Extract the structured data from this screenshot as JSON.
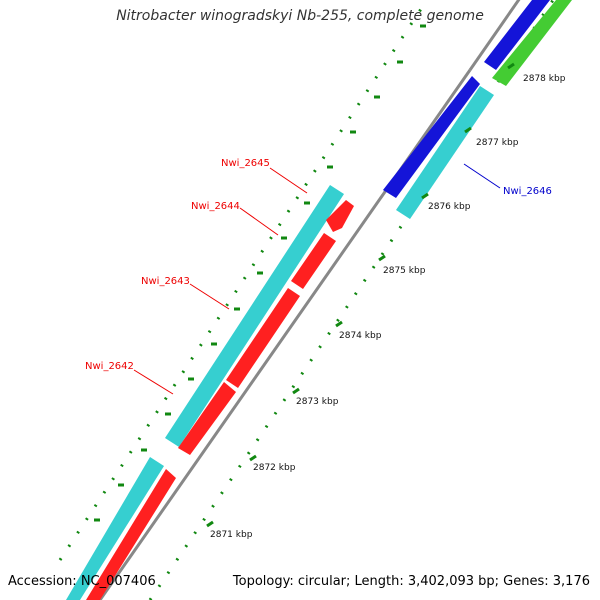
{
  "title": "Nitrobacter winogradskyi Nb-255, complete genome",
  "footer": {
    "accession": "Accession: NC_007406",
    "info": "Topology: circular; Length: 3,402,093 bp; Genes: 3,176"
  },
  "colors": {
    "cyan": "#36cfd0",
    "red": "#ff1a1a",
    "blue": "#1414d8",
    "green": "#44cc33",
    "backbone": "#888888",
    "tick": "#118811",
    "red_label": "#ee0000",
    "blue_label": "#0000cc"
  },
  "scale_labels": [
    "2871 kbp",
    "2872 kbp",
    "2873 kbp",
    "2874 kbp",
    "2875 kbp",
    "2876 kbp",
    "2877 kbp",
    "2878 kbp"
  ],
  "gene_labels": [
    {
      "text": "Nwi_2645",
      "color": "red"
    },
    {
      "text": "Nwi_2644",
      "color": "red"
    },
    {
      "text": "Nwi_2643",
      "color": "red"
    },
    {
      "text": "Nwi_2642",
      "color": "red"
    },
    {
      "text": "Nwi_2646",
      "color": "blue"
    }
  ]
}
